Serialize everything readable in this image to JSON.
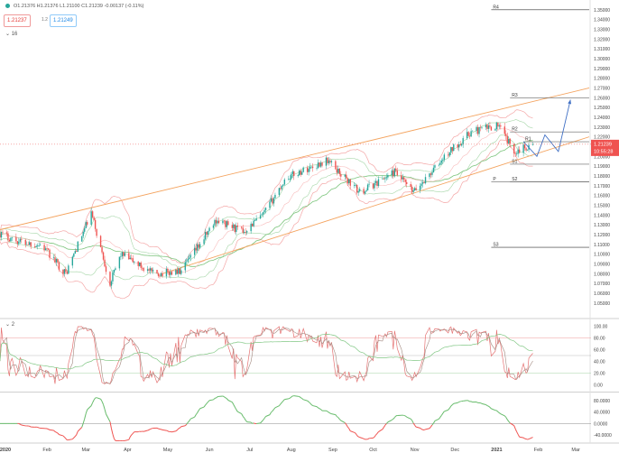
{
  "header": {
    "ohlc_text": "O1.21376  H1.21376  L1.21100  C1.21239  -0.00137 (-0.11%)",
    "sell_price": "1.21237",
    "buy_price": "1.21249",
    "quantity_label": "1.2",
    "main_pane_label": "16",
    "osc_pane_label": "2"
  },
  "price_axis": {
    "current_price": "1.21239",
    "countdown": "10:55:28"
  },
  "colors": {
    "up": "#26a69a",
    "down": "#ef5350",
    "bb_outer": "#f4a6a6",
    "bb_inner": "#a5d6a7",
    "channel": "#f4a460",
    "ma": "#7cc47c",
    "projection": "#3f6fc4",
    "stoch_k": "#e57373",
    "stoch_d": "#81c784",
    "osc_line_pos": "#66bb6a",
    "osc_line_neg": "#ef5350"
  },
  "chart_data": [
    {
      "type": "candlestick",
      "title": "",
      "xlabel": "",
      "ylabel": "",
      "x_ticks": [
        "2020",
        "Feb",
        "Mar",
        "Apr",
        "May",
        "Jun",
        "Jul",
        "Aug",
        "Sep",
        "Oct",
        "Nov",
        "Dec",
        "2021",
        "Feb",
        "Mar"
      ],
      "x_range": [
        "2020-01-01",
        "2021-03-15"
      ],
      "ylim": [
        1.035,
        1.36
      ],
      "y_ticks": [
        1.05,
        1.06,
        1.07,
        1.08,
        1.09,
        1.1,
        1.11,
        1.12,
        1.13,
        1.14,
        1.15,
        1.16,
        1.17,
        1.18,
        1.19,
        1.2,
        1.21,
        1.22,
        1.23,
        1.24,
        1.25,
        1.26,
        1.27,
        1.28,
        1.29,
        1.3,
        1.31,
        1.32,
        1.33,
        1.34,
        1.35
      ],
      "price_path": [
        [
          "2020-01-01",
          1.121
        ],
        [
          "2020-01-15",
          1.113
        ],
        [
          "2020-02-01",
          1.109
        ],
        [
          "2020-02-19",
          1.08
        ],
        [
          "2020-03-09",
          1.142
        ],
        [
          "2020-03-23",
          1.07
        ],
        [
          "2020-03-31",
          1.1
        ],
        [
          "2020-04-24",
          1.08
        ],
        [
          "2020-05-15",
          1.082
        ],
        [
          "2020-06-10",
          1.135
        ],
        [
          "2020-06-30",
          1.123
        ],
        [
          "2020-07-15",
          1.14
        ],
        [
          "2020-08-01",
          1.178
        ],
        [
          "2020-09-01",
          1.196
        ],
        [
          "2020-09-25",
          1.163
        ],
        [
          "2020-10-21",
          1.184
        ],
        [
          "2020-11-04",
          1.163
        ],
        [
          "2020-12-01",
          1.205
        ],
        [
          "2020-12-17",
          1.225
        ],
        [
          "2021-01-06",
          1.232
        ],
        [
          "2021-01-18",
          1.205
        ],
        [
          "2021-02-01",
          1.212
        ]
      ],
      "price_axis_current": 1.21239,
      "channel_upper": [
        [
          "2020-01-01",
          1.125
        ],
        [
          "2021-03-15",
          1.27
        ]
      ],
      "channel_lower": [
        [
          "2020-05-01",
          1.08
        ],
        [
          "2021-03-15",
          1.22
        ]
      ],
      "projection": [
        [
          "2021-01-25",
          1.215
        ],
        [
          "2021-02-04",
          1.2
        ],
        [
          "2021-02-10",
          1.222
        ],
        [
          "2021-02-20",
          1.205
        ],
        [
          "2021-03-01",
          1.258
        ]
      ],
      "pivot_levels": [
        {
          "label": "R4",
          "value": 1.35,
          "from": "2021-01-01"
        },
        {
          "label": "R3",
          "value": 1.26,
          "from": "2021-01-15"
        },
        {
          "label": "R2",
          "value": 1.225,
          "from": "2021-01-15"
        },
        {
          "label": "R1",
          "value": 1.215,
          "from": "2021-01-25"
        },
        {
          "label": "S1",
          "value": 1.192,
          "from": "2021-01-15"
        },
        {
          "label": "P",
          "value": 1.174,
          "from": "2021-01-01"
        },
        {
          "label": "S2",
          "value": 1.174,
          "from": "2021-01-15"
        },
        {
          "label": "S3",
          "value": 1.107,
          "from": "2021-01-01"
        }
      ]
    },
    {
      "type": "line",
      "title": "",
      "ylim": [
        -10,
        110
      ],
      "y_ticks": [
        0.0,
        20.0,
        40.0,
        60.0,
        80.0,
        100.0
      ],
      "y_tick_labels": [
        "0.00",
        "20.00",
        "40.00",
        "60.00",
        "80.00",
        "100.00"
      ],
      "levels": [
        {
          "value": 80,
          "color": "#ef9a9a"
        },
        {
          "value": 50,
          "color": "#bbbbbb"
        },
        {
          "value": 20,
          "color": "#a5d6a7"
        }
      ]
    },
    {
      "type": "line",
      "title": "",
      "ylim": [
        -65,
        105
      ],
      "y_ticks": [
        -40,
        0,
        40,
        80
      ],
      "y_tick_labels": [
        "-40.0000",
        "0.0000",
        "40.0000",
        "80.0000"
      ],
      "zero_line": 0
    }
  ]
}
